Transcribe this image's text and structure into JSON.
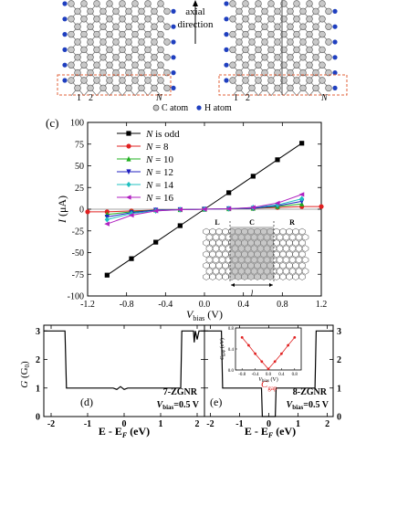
{
  "top_panel": {
    "axial_label_line1": "axial",
    "axial_label_line2": "direction",
    "left_index_1": "1",
    "left_index_2": "2",
    "left_index_N": "N",
    "right_index_1": "1",
    "right_index_2": "2",
    "right_index_N": "N",
    "legend_c_atom": "C atom",
    "legend_h_atom": "H atom",
    "c_color": "#c8c8c8",
    "h_color": "#1f3fbf",
    "dash_color": "#e0603a"
  },
  "panel_c": {
    "label": "(c)",
    "inset_L": "L",
    "inset_C": "C",
    "inset_R": "R",
    "inset_l": "l",
    "chart_data": {
      "type": "line",
      "xlabel_main": "V",
      "xlabel_sub": "bias",
      "xlabel_unit": " (V)",
      "ylabel": "I (μA)",
      "xlim": [
        -1.2,
        1.2
      ],
      "ylim": [
        -100,
        100
      ],
      "xticks": [
        "-1.2",
        "-0.8",
        "-0.4",
        "0.0",
        "0.4",
        "0.8",
        "1.2"
      ],
      "yticks": [
        "100",
        "75",
        "50",
        "25",
        "0",
        "-25",
        "-50",
        "-75",
        "-100"
      ],
      "series": [
        {
          "name": "N is odd",
          "color": "#000000",
          "marker": "square",
          "x": [
            -1.0,
            -0.75,
            -0.5,
            -0.25,
            0,
            0.25,
            0.5,
            0.75,
            1.0
          ],
          "y": [
            -76,
            -57,
            -38,
            -19,
            0,
            19,
            38,
            57,
            76
          ]
        },
        {
          "name": "N = 8",
          "color": "#e02020",
          "marker": "circle",
          "x": [
            -1.2,
            -1.0,
            -0.75,
            -0.5,
            -0.25,
            0,
            0.25,
            0.5,
            0.75,
            1.0,
            1.2
          ],
          "y": [
            -3,
            -3,
            -2,
            -1,
            -0.5,
            0,
            0.5,
            1,
            2,
            3,
            3
          ]
        },
        {
          "name": "N = 10",
          "color": "#20b020",
          "marker": "triangle-up",
          "x": [
            -1.0,
            -0.75,
            -0.5,
            -0.25,
            0,
            0.25,
            0.5,
            0.75,
            1.0
          ],
          "y": [
            -6,
            -3,
            -1,
            -0.5,
            0,
            0.5,
            1,
            3,
            6
          ]
        },
        {
          "name": "N = 12",
          "color": "#2020c0",
          "marker": "triangle-down",
          "x": [
            -1.0,
            -0.75,
            -0.5,
            -0.25,
            0,
            0.25,
            0.5,
            0.75,
            1.0
          ],
          "y": [
            -9,
            -4,
            -1,
            -0.5,
            0,
            0.5,
            1,
            4,
            9
          ]
        },
        {
          "name": "N = 14",
          "color": "#20c0c0",
          "marker": "diamond",
          "x": [
            -1.0,
            -0.75,
            -0.5,
            -0.25,
            0,
            0.25,
            0.5,
            0.75,
            1.0
          ],
          "y": [
            -12,
            -5,
            -2,
            -0.5,
            0,
            0.5,
            2,
            5,
            12
          ]
        },
        {
          "name": "N = 16",
          "color": "#b020c0",
          "marker": "triangle-left",
          "x": [
            -1.0,
            -0.75,
            -0.5,
            -0.25,
            0,
            0.25,
            0.5,
            0.75,
            1.0
          ],
          "y": [
            -17,
            -7,
            -2,
            -0.5,
            0,
            0.5,
            2,
            7,
            17
          ]
        }
      ]
    }
  },
  "panel_d": {
    "label": "(d)",
    "ribbon_label": "7-ZGNR",
    "bias_main": "V",
    "bias_sub": "bias",
    "bias_value": "=0.5 V",
    "ylabel": "G (G0)",
    "xlabel": "E - E",
    "xlabel_sub": "F",
    "xlabel_unit": " (eV)",
    "chart_data": {
      "type": "line",
      "xlim": [
        -2.2,
        2.2
      ],
      "ylim": [
        0,
        3.2
      ],
      "xticks": [
        "-2",
        "-1",
        "0",
        "1",
        "2"
      ],
      "yticks": [
        "0",
        "1",
        "2",
        "3"
      ],
      "x": [
        -2.2,
        -1.62,
        -1.58,
        -0.3,
        -0.2,
        -0.1,
        0.0,
        0.1,
        1.55,
        1.58,
        1.9,
        1.92,
        1.95,
        2.0,
        2.05,
        2.2
      ],
      "y": [
        3,
        3,
        1,
        1,
        0.95,
        1.05,
        0.95,
        1,
        1,
        3,
        3,
        2.6,
        3,
        2.7,
        3,
        3
      ]
    }
  },
  "panel_e": {
    "label": "(e)",
    "ribbon_label": "8-ZGNR",
    "bias_main": "V",
    "bias_sub": "bias",
    "bias_value": "=0.5 V",
    "gap_main": "C",
    "gap_sub": "gap",
    "xlabel": "E - E",
    "xlabel_sub": "F",
    "xlabel_unit": " (eV)",
    "chart_data": {
      "type": "line",
      "xlim": [
        -2.2,
        2.2
      ],
      "ylim": [
        0,
        3.2
      ],
      "xticks": [
        "-2",
        "-1",
        "0",
        "1",
        "2"
      ],
      "yticks": [
        "0",
        "1",
        "2",
        "3"
      ],
      "x": [
        -2.2,
        -1.62,
        -1.58,
        -0.25,
        -0.22,
        0.22,
        0.25,
        1.58,
        1.62,
        2.2
      ],
      "y": [
        3,
        3,
        1,
        1,
        0,
        0,
        1,
        1,
        3,
        3
      ]
    },
    "inset_chart_data": {
      "type": "line",
      "xlabel": "V",
      "xlabel_sub": "bias",
      "xlabel_unit": " (V)",
      "ylabel": "C",
      "ylabel_sub": "gap",
      "ylabel_unit": " (eV)",
      "xlim": [
        -1.0,
        1.0
      ],
      "ylim": [
        0.0,
        0.8
      ],
      "xticks": [
        "-0.8",
        "-0.4",
        "0.0",
        "0.4",
        "0.8"
      ],
      "yticks": [
        "0.0",
        "0.4",
        "0.8"
      ],
      "x": [
        -0.8,
        -0.6,
        -0.4,
        -0.2,
        0.0,
        0.2,
        0.4,
        0.6,
        0.8
      ],
      "y": [
        0.62,
        0.47,
        0.31,
        0.16,
        0.02,
        0.16,
        0.31,
        0.47,
        0.62
      ],
      "color": "#e02020"
    }
  }
}
